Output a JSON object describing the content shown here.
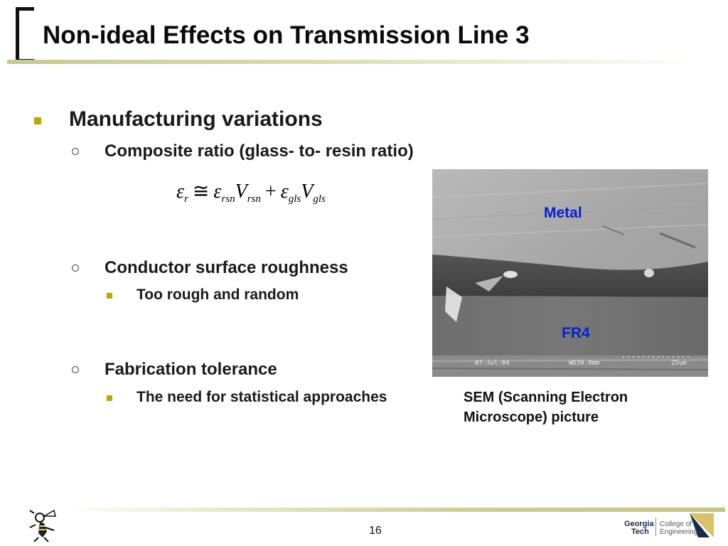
{
  "slide": {
    "title": "Non-ideal Effects on Transmission Line 3",
    "page_number": "16"
  },
  "bullets": {
    "level1": "Manufacturing variations",
    "composite": "Composite ratio (glass- to- resin ratio)",
    "roughness": "Conductor surface roughness",
    "roughness_sub": "Too rough and random",
    "tolerance": "Fabrication tolerance",
    "tolerance_sub": "The need for statistical approaches"
  },
  "formula": {
    "eps": "ε",
    "sub_r": "r",
    "approx": "≅",
    "sub_rsn": "rsn",
    "V": "V",
    "plus": "+",
    "sub_gls": "gls"
  },
  "sem_image": {
    "label_metal": "Metal",
    "label_fr4": "FR4",
    "date": "07-Jul-04",
    "wd": "WD39.8mm",
    "scale": "25um",
    "caption": "SEM (Scanning Electron Microscope) picture"
  },
  "logos": {
    "mascot": "yellow-jacket-icon",
    "gt_line1": "Georgia",
    "gt_line2": "Tech",
    "coe_line1": "College of",
    "coe_line2": "Engineering"
  },
  "colors": {
    "bullet": "#b8a800",
    "label_blue": "#0a20d0",
    "rule": "#c7c98e"
  }
}
